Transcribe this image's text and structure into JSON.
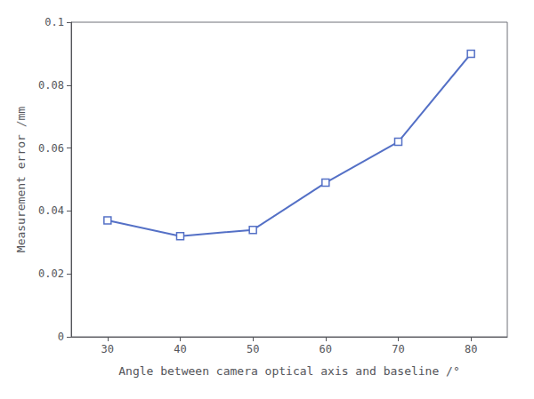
{
  "chart_data": {
    "type": "line",
    "x": [
      30,
      40,
      50,
      60,
      70,
      80
    ],
    "values": [
      0.037,
      0.032,
      0.034,
      0.049,
      0.062,
      0.09
    ],
    "xlabel": "Angle between camera optical axis and baseline /°",
    "ylabel": "Measurement error /mm",
    "xlim": [
      25,
      85
    ],
    "ylim": [
      0,
      0.1
    ],
    "xticks": [
      30,
      40,
      50,
      60,
      70,
      80
    ],
    "yticks": [
      0,
      0.02,
      0.04,
      0.06,
      0.08,
      0.1
    ],
    "marker": "square",
    "grid": false
  }
}
